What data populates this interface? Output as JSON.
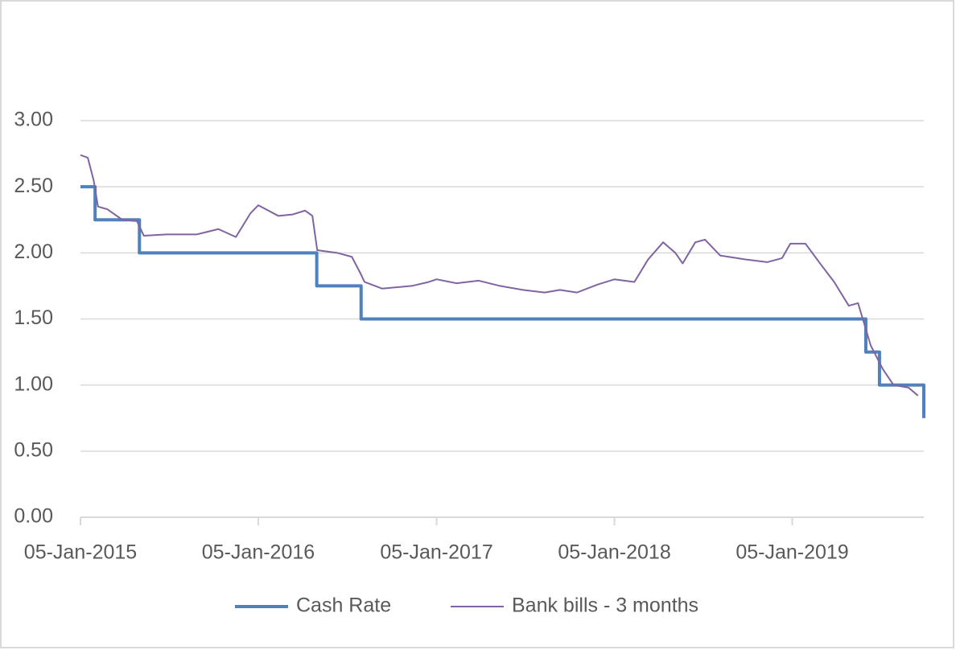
{
  "chart_data": {
    "type": "line",
    "xlim": [
      "2015-01-05",
      "2019-10-02"
    ],
    "xticks": [
      {
        "value": "2015-01-05",
        "label": "05-Jan-2015"
      },
      {
        "value": "2016-01-05",
        "label": "05-Jan-2016"
      },
      {
        "value": "2017-01-05",
        "label": "05-Jan-2017"
      },
      {
        "value": "2018-01-05",
        "label": "05-Jan-2018"
      },
      {
        "value": "2019-01-05",
        "label": "05-Jan-2019"
      }
    ],
    "ylim": [
      0,
      3
    ],
    "yticks": [
      {
        "value": 0,
        "label": "0.00"
      },
      {
        "value": 0.5,
        "label": "0.50"
      },
      {
        "value": 1,
        "label": "1.00"
      },
      {
        "value": 1.5,
        "label": "1.50"
      },
      {
        "value": 2,
        "label": "2.00"
      },
      {
        "value": 2.5,
        "label": "2.50"
      },
      {
        "value": 3,
        "label": "3.00"
      }
    ],
    "grid": true,
    "legend": "bottom",
    "series": [
      {
        "name": "Cash Rate",
        "color": "#4f81bd",
        "width": 4,
        "x": [
          "2015-01-05",
          "2015-02-04",
          "2015-02-04",
          "2015-05-06",
          "2015-05-06",
          "2016-05-04",
          "2016-05-04",
          "2016-08-03",
          "2016-08-03",
          "2019-06-05",
          "2019-06-05",
          "2019-07-03",
          "2019-07-03",
          "2019-10-02",
          "2019-10-02"
        ],
        "values": [
          2.5,
          2.5,
          2.25,
          2.25,
          2.0,
          2.0,
          1.75,
          1.75,
          1.5,
          1.5,
          1.25,
          1.25,
          1.0,
          1.0,
          0.75
        ]
      },
      {
        "name": "Bank bills - 3 months",
        "color": "#8064a2",
        "width": 2,
        "x": [
          "2015-01-05",
          "2015-01-20",
          "2015-02-01",
          "2015-02-10",
          "2015-03-01",
          "2015-04-01",
          "2015-05-01",
          "2015-05-15",
          "2015-07-01",
          "2015-09-01",
          "2015-10-15",
          "2015-11-20",
          "2015-12-20",
          "2016-01-05",
          "2016-02-15",
          "2016-03-15",
          "2016-04-10",
          "2016-04-25",
          "2016-05-05",
          "2016-06-15",
          "2016-07-15",
          "2016-08-01",
          "2016-08-10",
          "2016-09-15",
          "2016-11-15",
          "2016-12-20",
          "2017-01-05",
          "2017-02-15",
          "2017-04-01",
          "2017-05-15",
          "2017-07-01",
          "2017-08-15",
          "2017-09-15",
          "2017-10-20",
          "2017-12-01",
          "2018-01-05",
          "2018-02-15",
          "2018-03-15",
          "2018-04-15",
          "2018-05-10",
          "2018-05-25",
          "2018-06-20",
          "2018-07-10",
          "2018-08-10",
          "2018-10-01",
          "2018-11-15",
          "2018-12-15",
          "2019-01-01",
          "2019-02-01",
          "2019-03-01",
          "2019-04-01",
          "2019-05-01",
          "2019-05-20",
          "2019-06-15",
          "2019-07-10",
          "2019-08-01",
          "2019-09-01",
          "2019-09-20"
        ],
        "values": [
          2.74,
          2.72,
          2.55,
          2.35,
          2.33,
          2.25,
          2.24,
          2.13,
          2.14,
          2.14,
          2.18,
          2.12,
          2.3,
          2.36,
          2.28,
          2.29,
          2.32,
          2.28,
          2.02,
          2.0,
          1.97,
          1.85,
          1.78,
          1.73,
          1.75,
          1.78,
          1.8,
          1.77,
          1.79,
          1.75,
          1.72,
          1.7,
          1.72,
          1.7,
          1.76,
          1.8,
          1.78,
          1.95,
          2.08,
          2.0,
          1.92,
          2.08,
          2.1,
          1.98,
          1.95,
          1.93,
          1.96,
          2.07,
          2.07,
          1.93,
          1.78,
          1.6,
          1.62,
          1.3,
          1.12,
          1.0,
          0.98,
          0.92
        ]
      }
    ]
  }
}
